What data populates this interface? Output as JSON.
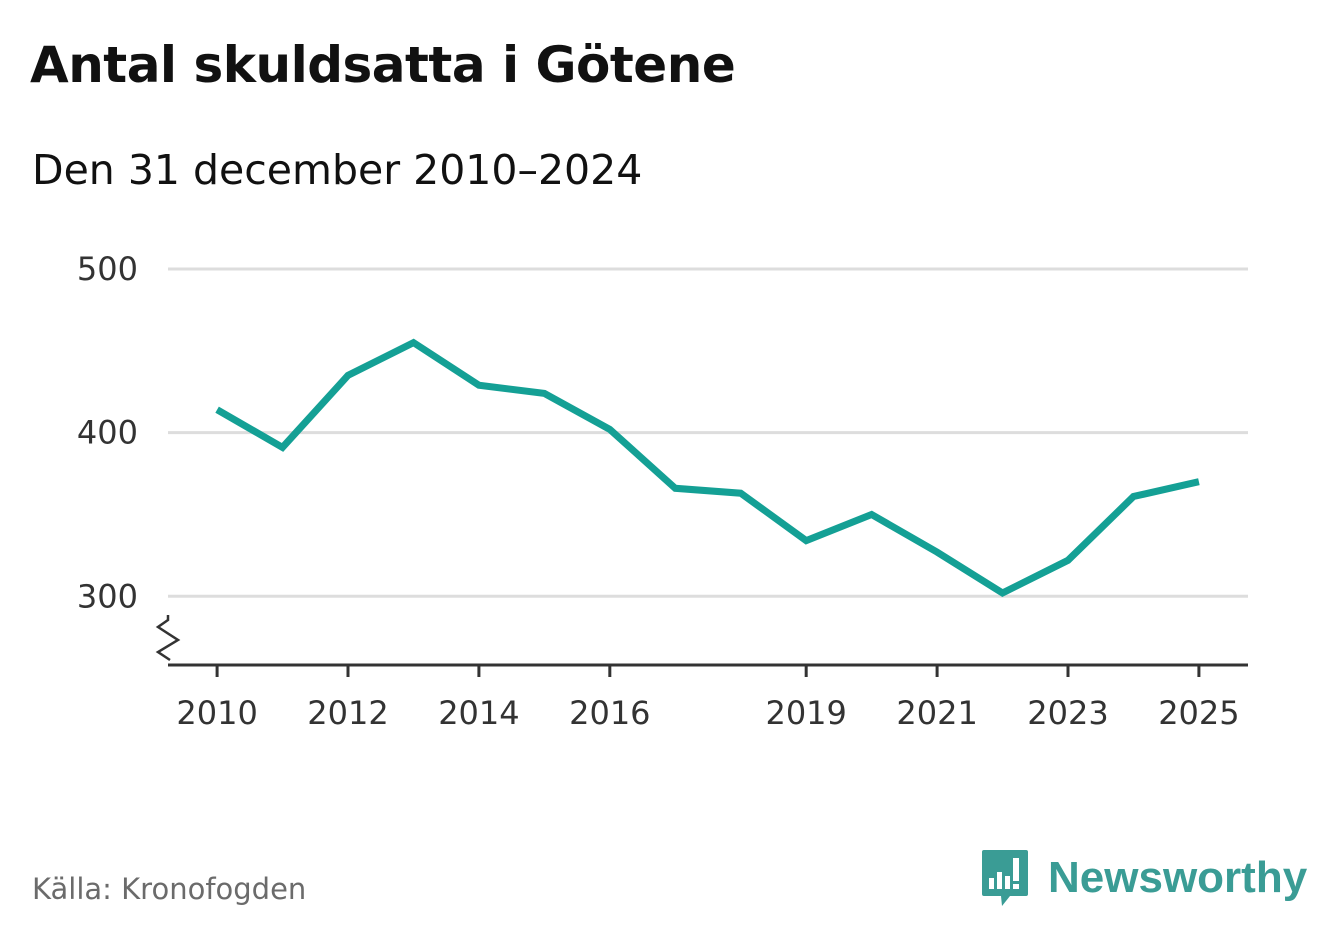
{
  "title": "Antal skuldsatta i Götene",
  "subtitle": "Den 31 december 2010–2024",
  "source": "Källa: Kronofogden",
  "brand": {
    "name": "Newsworthy",
    "icon": "bar-chart-icon",
    "color": "#3a9c95"
  },
  "chart_data": {
    "type": "line",
    "title": "Antal skuldsatta i Götene",
    "subtitle": "Den 31 december 2010–2024",
    "x": [
      2010,
      2011,
      2012,
      2013,
      2014,
      2015,
      2016,
      2017,
      2018,
      2019,
      2020,
      2021,
      2022,
      2023,
      2024,
      2025
    ],
    "series": [
      {
        "values": [
          414,
          391,
          435,
          455,
          429,
          424,
          402,
          366,
          363,
          334,
          350,
          327,
          302,
          322,
          361,
          370
        ],
        "color": "#14a095"
      }
    ],
    "xticks": [
      2010,
      2012,
      2014,
      2016,
      2019,
      2021,
      2023,
      2025
    ],
    "yticks": [
      300,
      400,
      500
    ],
    "ylim": [
      258,
      500
    ],
    "xlim": [
      2009.25,
      2025.75
    ],
    "y_axis_break": true,
    "grid": true
  }
}
